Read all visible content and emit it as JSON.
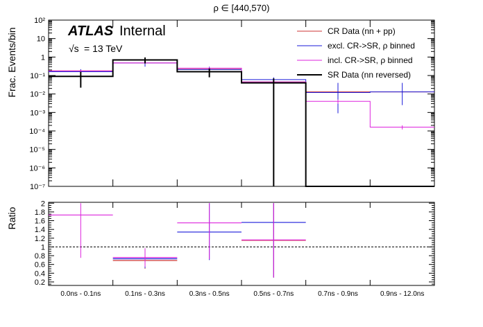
{
  "chart_data": [
    {
      "type": "histogram",
      "title": "ρ ∈ [440,570)",
      "ylabel": "Frac. Events/bin",
      "yscale": "log",
      "ylim": [
        1e-07,
        100
      ],
      "ytick_labels": [
        "10⁻⁷",
        "10⁻⁶",
        "10⁻⁵",
        "10⁻⁴",
        "10⁻³",
        "10⁻²",
        "10⁻¹",
        "1",
        "10",
        "10²"
      ],
      "atlas_label": "ATLAS",
      "atlas_suffix": "Internal",
      "energy_prefix": "√s",
      "energy_label": "= 13 TeV",
      "bins": [
        "0.0ns - 0.1ns",
        "0.1ns - 0.3ns",
        "0.3ns - 0.5ns",
        "0.5ns - 0.7ns",
        "0.7ns - 0.9ns",
        "0.9ns - 12.0ns"
      ],
      "legend_position": "top-right",
      "series": [
        {
          "name": "CR Data (nn + pp)",
          "color": "#cc3333",
          "values": [
            0.18,
            0.48,
            0.22,
            0.045,
            0.013,
            0.013
          ],
          "err_low": [
            0.16,
            0.38,
            0.18,
            0.04,
            0.012,
            0.012
          ],
          "err_high": [
            0.2,
            0.58,
            0.26,
            0.05,
            0.014,
            0.014
          ]
        },
        {
          "name": "excl. CR->SR, ρ binned",
          "color": "#1a1ad9",
          "values": [
            0.16,
            0.48,
            0.21,
            0.06,
            0.012,
            0.013
          ],
          "err_low": [
            0.07,
            0.3,
            0.13,
            0.04,
            0.0009,
            0.0025
          ],
          "err_high": [
            0.22,
            0.68,
            0.3,
            0.08,
            0.04,
            0.04
          ]
        },
        {
          "name": "incl. CR->SR, ρ binned",
          "color": "#dd22dd",
          "values": [
            0.18,
            0.48,
            0.25,
            0.045,
            0.004,
            0.00016
          ],
          "err_low": [
            0.16,
            0.44,
            0.2,
            0.04,
            0.003,
            0.00012
          ],
          "err_high": [
            0.2,
            0.52,
            0.28,
            0.05,
            0.005,
            0.0002
          ]
        },
        {
          "name": "SR Data (nn reversed)",
          "color": "#000000",
          "values": [
            0.09,
            0.7,
            0.16,
            0.04,
            1e-07,
            0
          ],
          "err_low": [
            0.022,
            0.45,
            0.08,
            1e-07,
            null,
            null
          ],
          "err_high": [
            0.16,
            0.95,
            0.24,
            0.07,
            null,
            null
          ]
        }
      ]
    },
    {
      "type": "ratio",
      "ylabel": "Ratio",
      "ylim": [
        0.12,
        2.02
      ],
      "yticks": [
        0.2,
        0.4,
        0.6,
        0.8,
        1,
        1.2,
        1.4,
        1.6,
        1.8,
        2
      ],
      "ytick_labels": [
        "0.2",
        "0.4",
        "0.6",
        "0.8",
        "1",
        "1.2",
        "1.4",
        "1.6",
        "1.8",
        "2"
      ],
      "reference_line": 1,
      "categories": [
        "0.0ns - 0.1ns",
        "0.1ns - 0.3ns",
        "0.3ns - 0.5ns",
        "0.5ns - 0.7ns",
        "0.7ns - 0.9ns",
        "0.9ns - 12.0ns"
      ],
      "series": [
        {
          "name": "CR Data (nn + pp)",
          "color": "#cc3333",
          "values": [
            null,
            0.69,
            null,
            1.15,
            null,
            null
          ],
          "err_low": [
            null,
            0.5,
            null,
            0.3,
            null,
            null
          ],
          "err_high": [
            null,
            0.88,
            null,
            2.0,
            null,
            null
          ]
        },
        {
          "name": "excl. CR->SR, ρ binned",
          "color": "#1a1ad9",
          "values": [
            null,
            0.73,
            1.34,
            1.56,
            null,
            null
          ],
          "err_low": [
            null,
            0.52,
            0.7,
            0.3,
            null,
            null
          ],
          "err_high": [
            null,
            0.94,
            2.0,
            2.0,
            null,
            null
          ]
        },
        {
          "name": "incl. CR->SR, ρ binned",
          "color": "#dd22dd",
          "values": [
            1.73,
            0.76,
            1.55,
            1.16,
            null,
            null
          ],
          "err_low": [
            0.75,
            0.55,
            0.72,
            0.3,
            null,
            null
          ],
          "err_high": [
            2.0,
            0.97,
            2.0,
            2.0,
            null,
            null
          ]
        }
      ]
    }
  ]
}
